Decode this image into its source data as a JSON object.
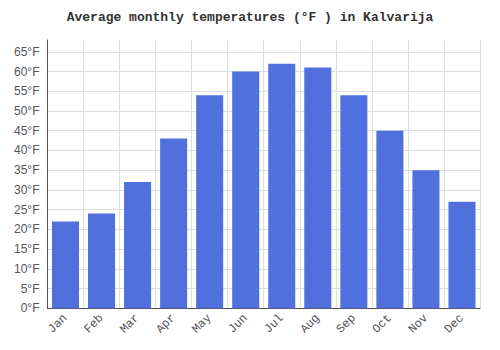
{
  "chart_data": {
    "type": "bar",
    "title": "Average monthly temperatures (°F ) in Kalvarija",
    "categories": [
      "Jan",
      "Feb",
      "Mar",
      "Apr",
      "May",
      "Jun",
      "Jul",
      "Aug",
      "Sep",
      "Oct",
      "Nov",
      "Dec"
    ],
    "values": [
      22,
      24,
      32,
      43,
      54,
      60,
      62,
      61,
      54,
      45,
      35,
      27
    ],
    "ylim": [
      0,
      68
    ],
    "yticks": [
      {
        "value": 0,
        "label": "0°F"
      },
      {
        "value": 5,
        "label": "5°F"
      },
      {
        "value": 10,
        "label": "10°F"
      },
      {
        "value": 15,
        "label": "15°F"
      },
      {
        "value": 20,
        "label": "20°F"
      },
      {
        "value": 25,
        "label": "25°F"
      },
      {
        "value": 30,
        "label": "30°F"
      },
      {
        "value": 35,
        "label": "35°F"
      },
      {
        "value": 40,
        "label": "40°F"
      },
      {
        "value": 45,
        "label": "45°F"
      },
      {
        "value": 50,
        "label": "50°F"
      },
      {
        "value": 55,
        "label": "55°F"
      },
      {
        "value": 60,
        "label": "60°F"
      },
      {
        "value": 65,
        "label": "65°F"
      }
    ],
    "grid": true
  }
}
